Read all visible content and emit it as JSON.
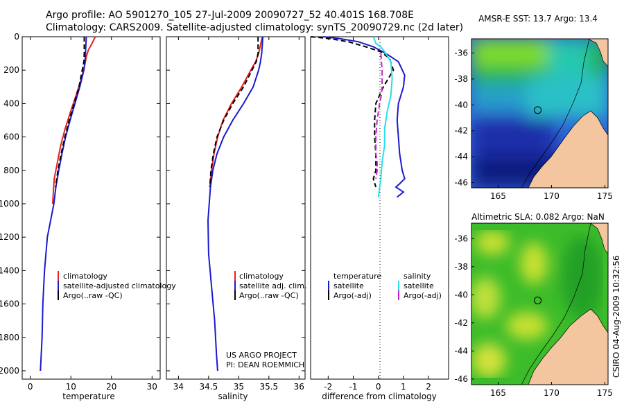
{
  "header": {
    "line1": "Argo profile: AO 5901270_105 27-Jul-2009 20090727_52 40.401S 168.708E",
    "line2": "Climatology: CARS2009. Satellite-adjusted climatology: synTS_20090729.nc (2d later)"
  },
  "side_label": "CSIRO 04-Aug-2009 10:32:56",
  "colors": {
    "climatology": "#e8201e",
    "satellite": "#1a1acf",
    "argo": "#000000",
    "salinity_satellite": "#26e0ea",
    "salinity_argo": "#cc22cc",
    "land": "#f3c6a0"
  },
  "chart_data": [
    {
      "type": "line",
      "id": "temperature",
      "xlabel": "temperature",
      "ylabel": "",
      "xlim": [
        -2,
        32
      ],
      "ylim": [
        2050,
        0
      ],
      "xticks": [
        0,
        10,
        20,
        30
      ],
      "yticks": [
        0,
        200,
        400,
        600,
        800,
        1000,
        1200,
        1400,
        1600,
        1800,
        2000
      ],
      "legend_position": "lower-right",
      "legend": [
        "climatology",
        "satellite-adjusted climatology",
        "Argo(..raw -QC)"
      ],
      "series": [
        {
          "name": "climatology",
          "color": "#e8201e",
          "dash": "",
          "x": [
            16.0,
            15.2,
            14.3,
            13.8,
            13.5,
            12.6,
            11.3,
            9.9,
            8.6,
            7.5,
            6.7,
            5.9,
            5.5
          ],
          "y": [
            0,
            40,
            80,
            120,
            160,
            250,
            350,
            450,
            550,
            650,
            750,
            850,
            1000
          ]
        },
        {
          "name": "satellite-adjusted climatology",
          "color": "#1a1acf",
          "dash": "",
          "x": [
            13.8,
            13.7,
            13.6,
            13.5,
            13.2,
            12.2,
            11.0,
            9.8,
            8.7,
            7.8,
            7.0,
            6.3,
            5.8,
            4.2,
            3.5,
            3.1,
            2.9,
            2.7,
            2.5
          ],
          "y": [
            0,
            50,
            100,
            150,
            200,
            300,
            400,
            500,
            600,
            700,
            800,
            900,
            1000,
            1200,
            1400,
            1600,
            1800,
            1900,
            2000
          ]
        },
        {
          "name": "Argo(..raw -QC)",
          "color": "#000000",
          "dash": "7,4",
          "x": [
            13.3,
            13.3,
            13.3,
            13.2,
            12.8,
            12.0,
            10.8,
            9.6,
            8.5,
            7.6,
            6.8,
            6.2
          ],
          "y": [
            0,
            50,
            100,
            150,
            200,
            300,
            400,
            500,
            600,
            700,
            800,
            900
          ]
        }
      ]
    },
    {
      "type": "line",
      "id": "salinity",
      "xlabel": "salinity",
      "ylabel": "",
      "xlim": [
        33.8,
        36.1
      ],
      "ylim": [
        2050,
        0
      ],
      "xticks": [
        34,
        34.5,
        35,
        35.5,
        36
      ],
      "legend_position": "lower-right",
      "legend": [
        "climatology",
        "satellite adj. clim.",
        "Argo(..raw -QC)"
      ],
      "annotation": [
        "US ARGO PROJECT",
        "PI: DEAN ROEMMICH"
      ],
      "series": [
        {
          "name": "climatology",
          "color": "#e8201e",
          "dash": "",
          "x": [
            35.39,
            35.36,
            35.33,
            35.28,
            35.2,
            35.05,
            34.88,
            34.74,
            34.65,
            34.59,
            34.55,
            34.52
          ],
          "y": [
            0,
            50,
            100,
            150,
            200,
            300,
            400,
            500,
            600,
            700,
            800,
            900
          ]
        },
        {
          "name": "satellite adj. clim.",
          "color": "#1a1acf",
          "dash": "",
          "x": [
            35.4,
            35.39,
            35.38,
            35.36,
            35.33,
            35.24,
            35.08,
            34.9,
            34.75,
            34.64,
            34.57,
            34.53,
            34.49,
            34.5,
            34.55,
            34.6,
            34.63,
            34.65
          ],
          "y": [
            0,
            50,
            100,
            150,
            200,
            300,
            400,
            500,
            600,
            700,
            800,
            900,
            1100,
            1300,
            1500,
            1700,
            1900,
            2000
          ]
        },
        {
          "name": "Argo(..raw -QC)",
          "color": "#000000",
          "dash": "7,4",
          "x": [
            35.32,
            35.32,
            35.32,
            35.29,
            35.22,
            35.08,
            34.9,
            34.75,
            34.64,
            34.58,
            34.54,
            34.52
          ],
          "y": [
            0,
            50,
            100,
            150,
            200,
            300,
            400,
            500,
            600,
            700,
            800,
            900
          ]
        }
      ]
    },
    {
      "type": "line",
      "id": "difference",
      "xlabel": "difference from climatology",
      "ylabel": "",
      "xlim": [
        -2.7,
        2.8
      ],
      "ylim": [
        2050,
        0
      ],
      "xticks": [
        -2,
        -1,
        0,
        1,
        2
      ],
      "legend_position": "lower-center",
      "legend_groups": [
        {
          "title": "temperature",
          "entries": [
            "satellite",
            "Argo(-adj)"
          ]
        },
        {
          "title": "salinity",
          "entries": [
            "satellite",
            "Argo(-adj)"
          ]
        }
      ],
      "series": [
        {
          "name": "temperature satellite",
          "color": "#1a1acf",
          "dash": "",
          "x": [
            -2.2,
            -1.6,
            -0.8,
            -0.2,
            0.3,
            0.8,
            1.05,
            1.0,
            0.8,
            0.75,
            0.8,
            0.85,
            0.95,
            1.05,
            0.85,
            0.7,
            1.0,
            0.75
          ],
          "y": [
            0,
            10,
            30,
            60,
            100,
            150,
            230,
            300,
            400,
            500,
            600,
            700,
            800,
            850,
            880,
            900,
            930,
            960
          ]
        },
        {
          "name": "temperature Argo(-adj)",
          "color": "#000000",
          "dash": "7,4",
          "x": [
            -2.7,
            -2.0,
            -1.2,
            -0.5,
            0.1,
            0.45,
            0.6,
            0.2,
            -0.1,
            -0.15,
            -0.15,
            -0.1,
            -0.1,
            -0.2,
            -0.1
          ],
          "y": [
            0,
            10,
            30,
            60,
            90,
            130,
            200,
            300,
            400,
            500,
            600,
            700,
            800,
            850,
            900
          ]
        },
        {
          "name": "salinity satellite",
          "color": "#26e0ea",
          "dash": "",
          "x": [
            -0.2,
            -0.15,
            -0.1,
            0.1,
            0.3,
            0.5,
            0.55,
            0.5,
            0.35,
            0.25,
            0.25,
            0.15,
            0.1,
            0.0
          ],
          "y": [
            0,
            20,
            40,
            60,
            100,
            150,
            250,
            350,
            450,
            550,
            650,
            750,
            850,
            960
          ]
        },
        {
          "name": "salinity Argo(-adj)",
          "color": "#cc22cc",
          "dash": "8,4",
          "x": [
            0.1,
            0.15,
            0.15,
            0.12,
            0.05,
            -0.05,
            -0.1,
            -0.1,
            -0.05,
            -0.05,
            -0.1
          ],
          "y": [
            100,
            200,
            300,
            350,
            400,
            500,
            600,
            700,
            750,
            800,
            850
          ]
        }
      ]
    },
    {
      "type": "heatmap",
      "id": "sst_map",
      "title": "AMSR-E SST: 13.7 Argo: 13.4",
      "xlim": [
        162.5,
        175.3
      ],
      "ylim": [
        -46.4,
        -34.9
      ],
      "xticks": [
        165,
        170,
        175
      ],
      "yticks": [
        -36,
        -38,
        -40,
        -42,
        -44,
        -46
      ],
      "float_marker": {
        "lon": 168.708,
        "lat": -40.401
      }
    },
    {
      "type": "heatmap",
      "id": "sla_map",
      "title": "Altimetric SLA: 0.082 Argo: NaN",
      "xlim": [
        162.5,
        175.3
      ],
      "ylim": [
        -46.4,
        -34.9
      ],
      "xticks": [
        165,
        170,
        175
      ],
      "yticks": [
        -36,
        -38,
        -40,
        -42,
        -44,
        -46
      ],
      "float_marker": {
        "lon": 168.708,
        "lat": -40.401
      }
    }
  ]
}
